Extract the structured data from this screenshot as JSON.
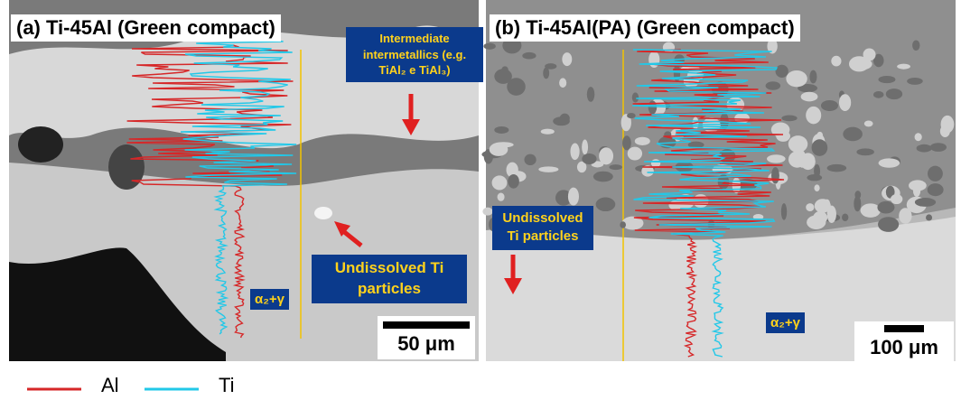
{
  "panels": [
    {
      "label": "(a) Ti-45Al (Green compact)",
      "annotations": [
        "Intermediate intermetallics (e.g. TiAl₂ e TiAl₃)",
        "Undissolved Ti particles"
      ],
      "phase": "α₂+γ",
      "scale_bar": "50 μm"
    },
    {
      "label": "(b) Ti-45Al(PA) (Green compact)",
      "annotations": [
        "Undissolved Ti particles"
      ],
      "phase": "α₂+γ",
      "scale_bar": "100 μm"
    }
  ],
  "legend": [
    "Al",
    "Ti"
  ]
}
